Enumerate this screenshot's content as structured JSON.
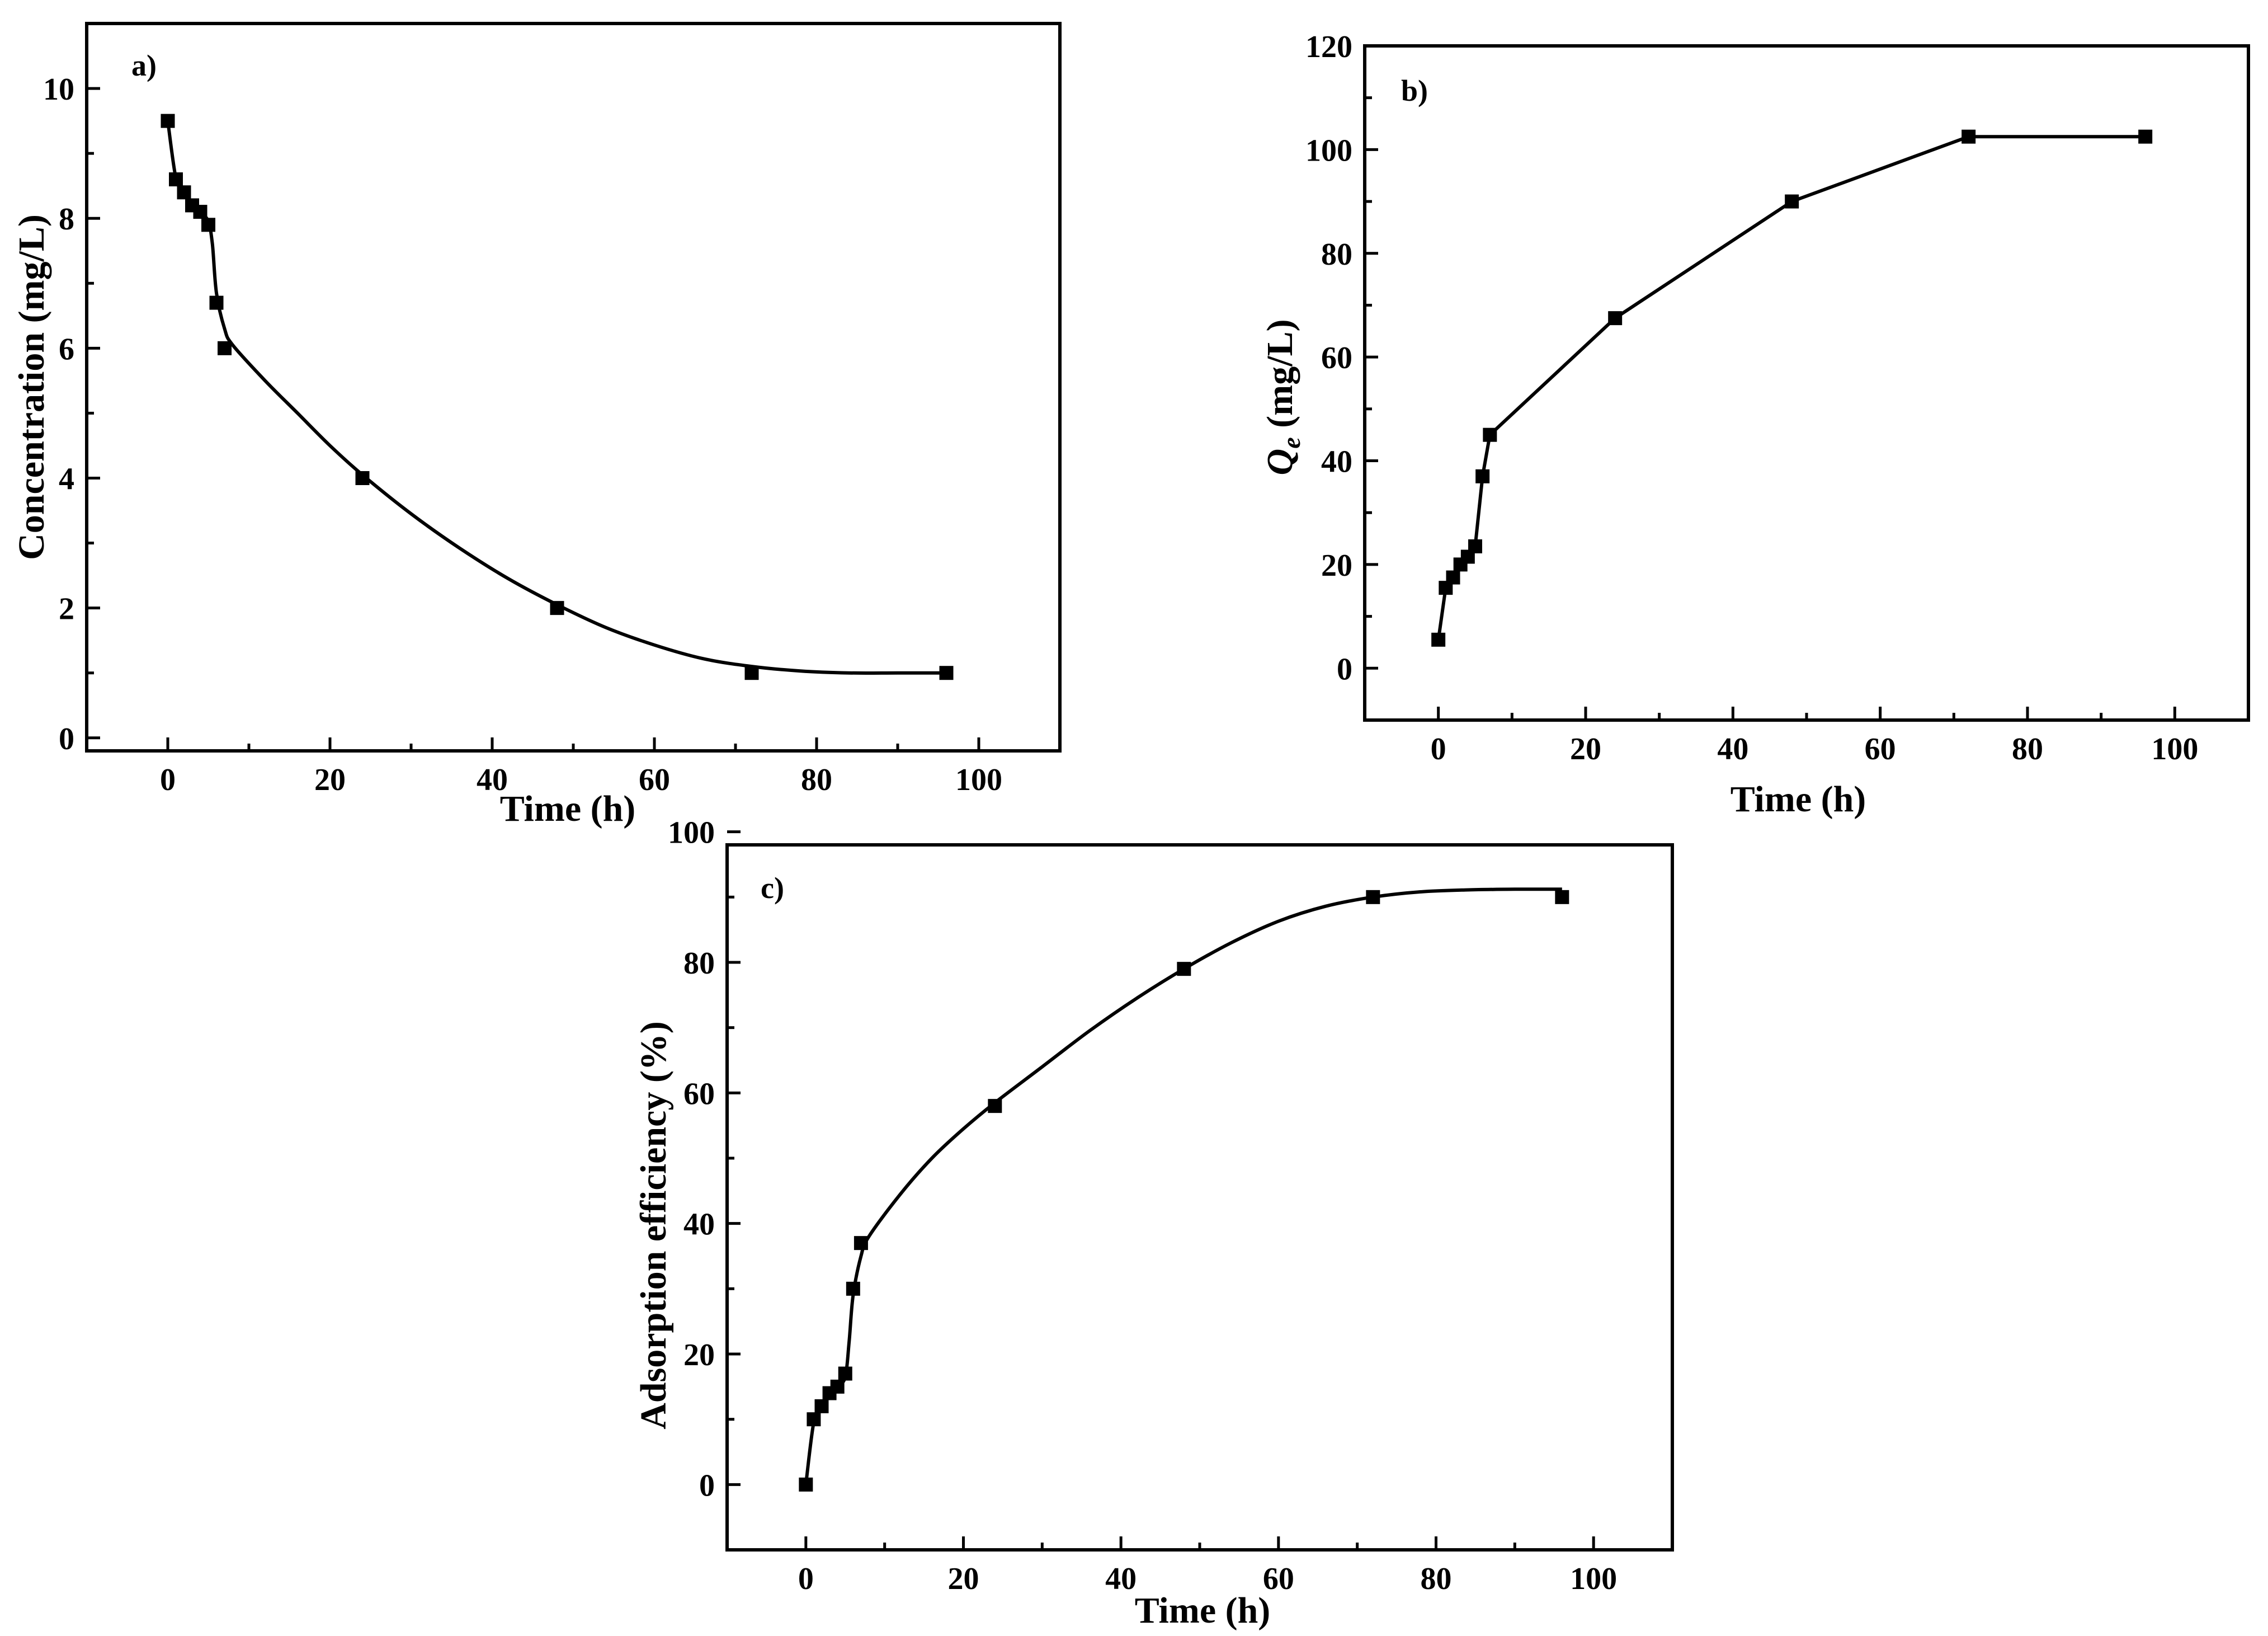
{
  "figure": {
    "description_labels": [
      "a)",
      "b)",
      "c)"
    ]
  },
  "colors": {
    "line": "#000000",
    "marker": "#000000",
    "background": "#ffffff"
  },
  "chart_data": [
    {
      "id": "a",
      "type": "line",
      "panel_label": "a)",
      "xlabel": "Time (h)",
      "ylabel": "Concentration (mg/L)",
      "xlim": [
        -10,
        110
      ],
      "ylim": [
        -0.2,
        11
      ],
      "xticks": [
        0,
        20,
        40,
        60,
        80,
        100
      ],
      "yticks": [
        0,
        2,
        4,
        6,
        8,
        10
      ],
      "xtick_labels": [
        "0",
        "20",
        "40",
        "60",
        "80",
        "100"
      ],
      "ytick_labels": [
        "0",
        "2",
        "4",
        "6",
        "8",
        "10"
      ],
      "x": [
        0,
        1,
        2,
        3,
        4,
        5,
        6,
        7,
        24,
        48,
        72,
        96
      ],
      "y": [
        9.5,
        8.6,
        8.4,
        8.2,
        8.1,
        7.9,
        6.7,
        6.0,
        4.0,
        2.0,
        1.0,
        1.0
      ],
      "fit_curve": {
        "x": [
          0,
          1,
          2,
          3,
          4,
          5,
          5.5,
          6,
          7,
          8,
          12,
          16,
          20,
          24,
          30,
          36,
          42,
          48,
          54,
          60,
          66,
          72,
          78,
          84,
          90,
          96
        ],
        "y": [
          9.5,
          8.62,
          8.4,
          8.22,
          8.1,
          7.95,
          7.6,
          6.85,
          6.3,
          6.05,
          5.5,
          5.0,
          4.5,
          4.05,
          3.45,
          2.92,
          2.45,
          2.05,
          1.7,
          1.43,
          1.22,
          1.1,
          1.03,
          1.0,
          1.0,
          1.0
        ]
      }
    },
    {
      "id": "b",
      "type": "line",
      "panel_label": "b)",
      "xlabel": "Time (h)",
      "ylabel_main": "Q",
      "ylabel_sub": "e",
      "ylabel_rest": " (mg/L)",
      "xlim": [
        -10,
        110
      ],
      "ylim": [
        -10,
        120
      ],
      "xticks": [
        0,
        20,
        40,
        60,
        80,
        100
      ],
      "yticks": [
        0,
        20,
        40,
        60,
        80,
        100,
        120
      ],
      "xtick_labels": [
        "0",
        "20",
        "40",
        "60",
        "80",
        "100"
      ],
      "ytick_labels": [
        "0",
        "20",
        "40",
        "60",
        "80",
        "100",
        "120"
      ],
      "x": [
        0,
        1,
        2,
        3,
        4,
        5,
        6,
        7,
        24,
        48,
        72,
        96
      ],
      "y": [
        5.5,
        15.5,
        17.5,
        20,
        21.5,
        23.5,
        37,
        45,
        67.5,
        90,
        102.5,
        102.5
      ]
    },
    {
      "id": "c",
      "type": "line",
      "panel_label": "c)",
      "xlabel": "Time (h)",
      "ylabel": "Adsorption efficiency (%)",
      "xlim": [
        -10,
        110
      ],
      "ylim": [
        -10,
        98
      ],
      "xticks": [
        0,
        20,
        40,
        60,
        80,
        100
      ],
      "yticks": [
        0,
        20,
        40,
        60,
        80,
        100
      ],
      "xtick_labels": [
        "0",
        "20",
        "40",
        "60",
        "80",
        "100"
      ],
      "ytick_labels": [
        "0",
        "20",
        "40",
        "60",
        "80",
        "100"
      ],
      "x": [
        0,
        1,
        2,
        3,
        4,
        5,
        6,
        7,
        24,
        48,
        72,
        96
      ],
      "y": [
        0,
        10,
        12,
        14,
        15,
        17,
        30,
        37,
        58,
        79,
        90,
        90
      ],
      "fit_curve": {
        "x": [
          0,
          1,
          2,
          3,
          4,
          5,
          5.5,
          6,
          7,
          8,
          12,
          16,
          20,
          24,
          30,
          36,
          42,
          48,
          54,
          60,
          66,
          72,
          78,
          84,
          90,
          96
        ],
        "y": [
          0,
          9.5,
          12,
          13.8,
          15,
          16.5,
          22,
          29,
          35,
          38,
          44.5,
          50,
          54.5,
          58.5,
          64,
          69.5,
          74.5,
          79,
          83,
          86.3,
          88.6,
          90,
          90.8,
          91.1,
          91.2,
          91.2
        ]
      }
    }
  ]
}
